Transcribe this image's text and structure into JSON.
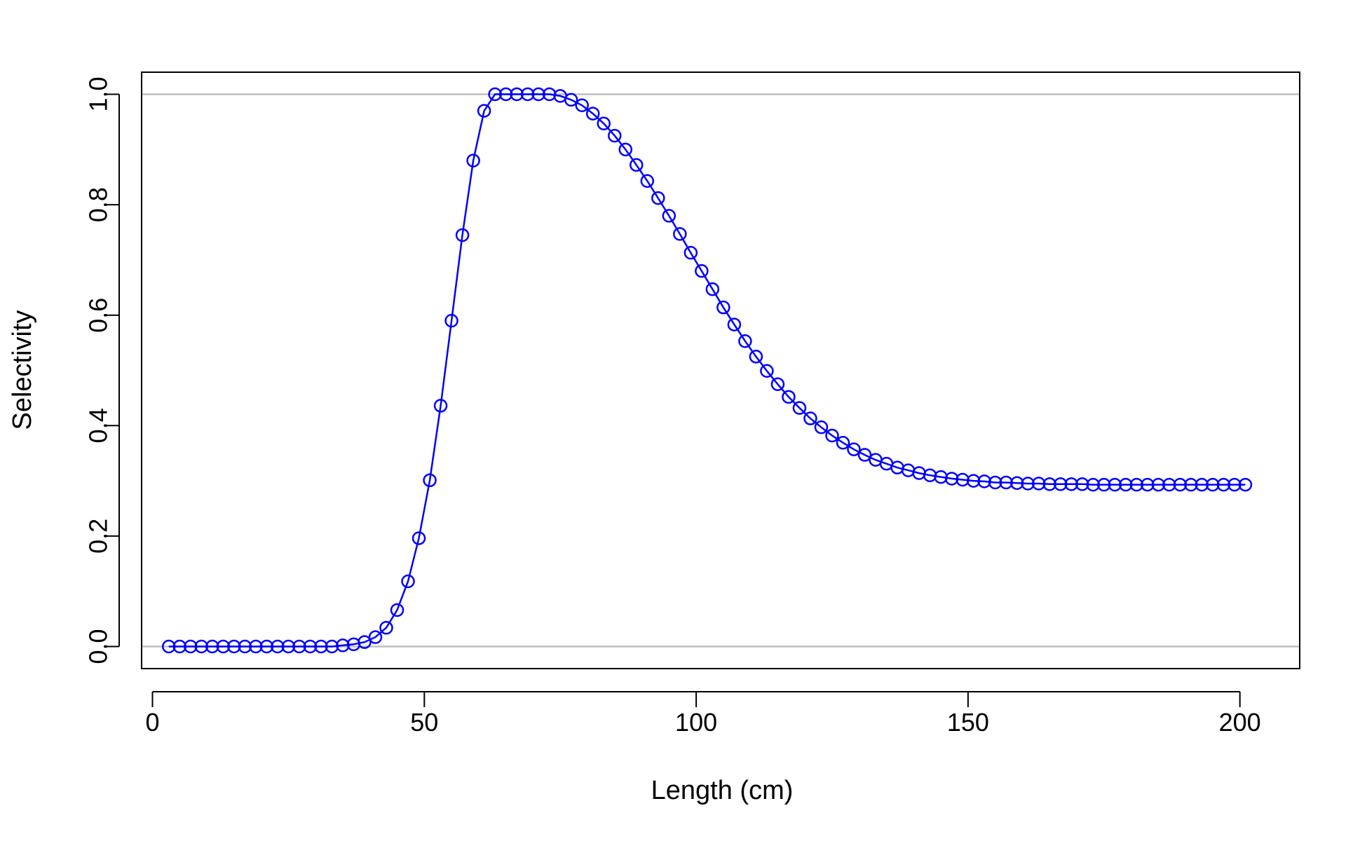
{
  "chart_data": {
    "type": "line",
    "title": "",
    "xlabel": "Length (cm)",
    "ylabel": "Selectivity",
    "xlim": [
      -2.0,
      211.0
    ],
    "ylim": [
      -0.04,
      1.04
    ],
    "xticks": [
      0,
      50,
      100,
      150,
      200
    ],
    "xtick_labels": [
      "0",
      "50",
      "100",
      "150",
      "200"
    ],
    "yticks": [
      0.0,
      0.2,
      0.4,
      0.6,
      0.8,
      1.0
    ],
    "ytick_labels": [
      "0.0",
      "0.2",
      "0.4",
      "0.6",
      "0.8",
      "1.0"
    ],
    "reference_lines_y": [
      0.0,
      1.0
    ],
    "grid": false,
    "legend": "none",
    "colors": {
      "series": "#0000ff",
      "reference": "#bebebe",
      "axes": "#000000"
    },
    "series": [
      {
        "marker": "open-circle",
        "x": [
          3,
          5,
          7,
          9,
          11,
          13,
          15,
          17,
          19,
          21,
          23,
          25,
          27,
          29,
          31,
          33,
          35,
          37,
          39,
          41,
          43,
          45,
          47,
          49,
          51,
          53,
          55,
          57,
          59,
          61,
          63,
          65,
          67,
          69,
          71,
          73,
          75,
          77,
          79,
          81,
          83,
          85,
          87,
          89,
          91,
          93,
          95,
          97,
          99,
          101,
          103,
          105,
          107,
          109,
          111,
          113,
          115,
          117,
          119,
          121,
          123,
          125,
          127,
          129,
          131,
          133,
          135,
          137,
          139,
          141,
          143,
          145,
          147,
          149,
          151,
          153,
          155,
          157,
          159,
          161,
          163,
          165,
          167,
          169,
          171,
          173,
          175,
          177,
          179,
          181,
          183,
          185,
          187,
          189,
          191,
          193,
          195,
          197,
          199,
          201
        ],
        "y": [
          0.0,
          0.0,
          0.0,
          0.0,
          0.0,
          0.0,
          0.0,
          0.0,
          0.0,
          0.0,
          0.0,
          0.0,
          0.0,
          0.0,
          0.0,
          0.0,
          0.002,
          0.004,
          0.008,
          0.017,
          0.034,
          0.066,
          0.118,
          0.196,
          0.301,
          0.436,
          0.59,
          0.745,
          0.88,
          0.97,
          1.0,
          1.0,
          1.0,
          1.0,
          1.0,
          1.0,
          0.997,
          0.99,
          0.98,
          0.965,
          0.947,
          0.925,
          0.9,
          0.872,
          0.843,
          0.812,
          0.78,
          0.747,
          0.713,
          0.68,
          0.647,
          0.614,
          0.583,
          0.553,
          0.525,
          0.499,
          0.475,
          0.452,
          0.432,
          0.413,
          0.397,
          0.382,
          0.369,
          0.357,
          0.347,
          0.338,
          0.331,
          0.324,
          0.319,
          0.314,
          0.31,
          0.307,
          0.304,
          0.302,
          0.3,
          0.299,
          0.297,
          0.297,
          0.296,
          0.295,
          0.295,
          0.294,
          0.294,
          0.294,
          0.294,
          0.293,
          0.293,
          0.293,
          0.293,
          0.293,
          0.293,
          0.293,
          0.293,
          0.293,
          0.293,
          0.293,
          0.293,
          0.293,
          0.293,
          0.293
        ]
      }
    ]
  }
}
